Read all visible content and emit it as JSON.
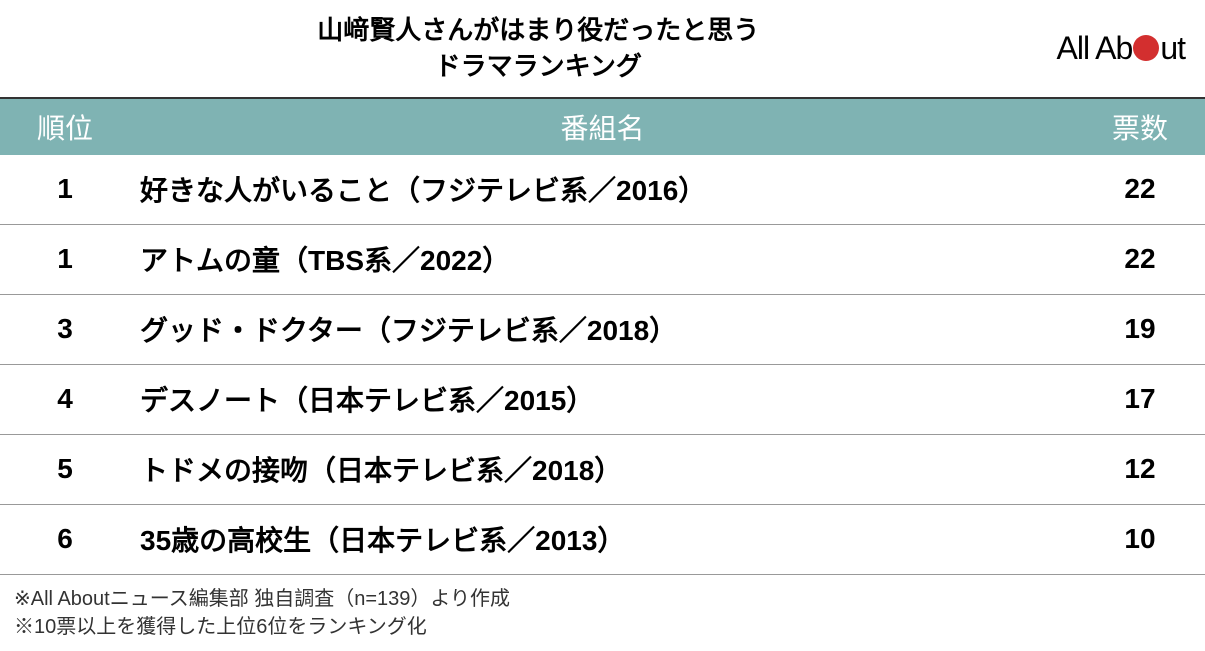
{
  "title": {
    "line1": "山﨑賢人さんがはまり役だったと思う",
    "line2": "ドラマランキング"
  },
  "logo": {
    "part1": "All Ab",
    "part2": "ut"
  },
  "table": {
    "header_bg": "#7fb3b3",
    "header_text_color": "#ffffff",
    "columns": {
      "rank": "順位",
      "name": "番組名",
      "votes": "票数"
    },
    "rows": [
      {
        "rank": "1",
        "name": "好きな人がいること（フジテレビ系／2016）",
        "votes": "22"
      },
      {
        "rank": "1",
        "name": "アトムの童（TBS系／2022）",
        "votes": "22"
      },
      {
        "rank": "3",
        "name": "グッド・ドクター（フジテレビ系／2018）",
        "votes": "19"
      },
      {
        "rank": "4",
        "name": "デスノート（日本テレビ系／2015）",
        "votes": "17"
      },
      {
        "rank": "5",
        "name": "トドメの接吻（日本テレビ系／2018）",
        "votes": "12"
      },
      {
        "rank": "6",
        "name": "35歳の高校生（日本テレビ系／2013）",
        "votes": "10"
      }
    ]
  },
  "footnotes": {
    "line1": "※All Aboutニュース編集部 独自調査（n=139）より作成",
    "line2": "※10票以上を獲得した上位6位をランキング化"
  },
  "colors": {
    "logo_dot": "#d32f2f",
    "border": "#999999",
    "header_border": "#333333"
  }
}
